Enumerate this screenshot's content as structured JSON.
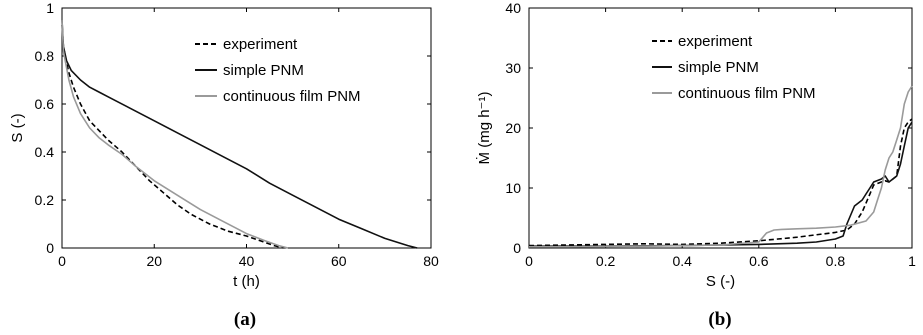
{
  "chart_data": [
    {
      "panel_label": "(a)",
      "type": "line",
      "xlabel": "t (h)",
      "ylabel": "S (-)",
      "xlim": [
        0,
        80
      ],
      "ylim": [
        0,
        1
      ],
      "xticks": [
        "0",
        "20",
        "40",
        "60",
        "80"
      ],
      "yticks": [
        "0",
        "0.2",
        "0.4",
        "0.6",
        "0.8",
        "1"
      ],
      "grid": false,
      "legend": "top-right inside",
      "series": [
        {
          "name": "experiment",
          "style": "dashed",
          "color": "#000000",
          "x": [
            0,
            0.3,
            0.8,
            1.5,
            2.5,
            4,
            6,
            8,
            10,
            13,
            16,
            19,
            22,
            25,
            28,
            32,
            36,
            40,
            43,
            46,
            48
          ],
          "y": [
            0.93,
            0.84,
            0.79,
            0.73,
            0.67,
            0.6,
            0.53,
            0.49,
            0.45,
            0.4,
            0.34,
            0.28,
            0.23,
            0.18,
            0.14,
            0.1,
            0.07,
            0.05,
            0.03,
            0.01,
            0.0
          ]
        },
        {
          "name": "simple PNM",
          "style": "solid",
          "color": "#111111",
          "x": [
            0,
            0.3,
            1,
            2,
            4,
            6,
            8,
            10,
            15,
            20,
            25,
            30,
            35,
            40,
            45,
            50,
            55,
            60,
            65,
            70,
            75,
            77
          ],
          "y": [
            0.95,
            0.84,
            0.78,
            0.74,
            0.7,
            0.67,
            0.65,
            0.63,
            0.58,
            0.53,
            0.48,
            0.43,
            0.38,
            0.33,
            0.27,
            0.22,
            0.17,
            0.12,
            0.08,
            0.04,
            0.01,
            0.0
          ]
        },
        {
          "name": "continuous film PNM",
          "style": "solid",
          "color": "#9a9a9a",
          "x": [
            0,
            0.3,
            0.8,
            1.5,
            2.5,
            4,
            6,
            8,
            10,
            13,
            16,
            20,
            25,
            30,
            35,
            40,
            44,
            47,
            49
          ],
          "y": [
            0.95,
            0.82,
            0.77,
            0.7,
            0.63,
            0.56,
            0.5,
            0.46,
            0.43,
            0.39,
            0.34,
            0.28,
            0.22,
            0.16,
            0.11,
            0.06,
            0.03,
            0.01,
            0.0
          ]
        }
      ]
    },
    {
      "panel_label": "(b)",
      "type": "line",
      "xlabel": "S (-)",
      "ylabel": "Ṁ (mg h⁻¹)",
      "xlim": [
        0,
        1
      ],
      "ylim": [
        0,
        40
      ],
      "xticks": [
        "0",
        "0.2",
        "0.4",
        "0.6",
        "0.8",
        "1"
      ],
      "yticks": [
        "0",
        "10",
        "20",
        "30",
        "40"
      ],
      "grid": false,
      "legend": "top-center inside",
      "series": [
        {
          "name": "experiment",
          "style": "dashed",
          "color": "#000000",
          "x": [
            0,
            0.1,
            0.2,
            0.3,
            0.4,
            0.5,
            0.6,
            0.65,
            0.7,
            0.75,
            0.8,
            0.83,
            0.85,
            0.87,
            0.89,
            0.9,
            0.92,
            0.93,
            0.94,
            0.96,
            0.97,
            0.98,
            0.99,
            1.0
          ],
          "y": [
            0.4,
            0.5,
            0.6,
            0.7,
            0.6,
            0.8,
            1.2,
            1.5,
            1.8,
            2.2,
            2.6,
            3.0,
            4.0,
            6.0,
            9.0,
            10.5,
            11.0,
            11.2,
            11.0,
            12.0,
            17.0,
            20.0,
            21.0,
            21.5
          ]
        },
        {
          "name": "simple PNM",
          "style": "solid",
          "color": "#111111",
          "x": [
            0,
            0.2,
            0.4,
            0.5,
            0.6,
            0.7,
            0.75,
            0.8,
            0.82,
            0.83,
            0.84,
            0.85,
            0.87,
            0.88,
            0.89,
            0.9,
            0.92,
            0.93,
            0.94,
            0.96,
            0.97,
            0.98,
            0.99,
            1.0
          ],
          "y": [
            0.3,
            0.3,
            0.4,
            0.5,
            0.6,
            0.8,
            1.0,
            1.5,
            2.0,
            4.0,
            5.5,
            7.0,
            8.0,
            9.0,
            10.0,
            11.0,
            11.5,
            12.0,
            11.0,
            12.0,
            14.0,
            17.0,
            20.0,
            21.0
          ]
        },
        {
          "name": "continuous film PNM",
          "style": "solid",
          "color": "#9a9a9a",
          "x": [
            0,
            0.1,
            0.3,
            0.5,
            0.6,
            0.62,
            0.64,
            0.66,
            0.7,
            0.75,
            0.8,
            0.84,
            0.88,
            0.9,
            0.91,
            0.92,
            0.93,
            0.94,
            0.95,
            0.96,
            0.97,
            0.98,
            0.99,
            1.0
          ],
          "y": [
            0.2,
            0.2,
            0.3,
            0.5,
            1.0,
            2.5,
            3.0,
            3.1,
            3.2,
            3.3,
            3.5,
            3.8,
            4.5,
            6.0,
            8.0,
            10.0,
            13.0,
            15.0,
            16.0,
            18.0,
            20.0,
            24.0,
            26.0,
            27.0
          ]
        }
      ]
    }
  ]
}
